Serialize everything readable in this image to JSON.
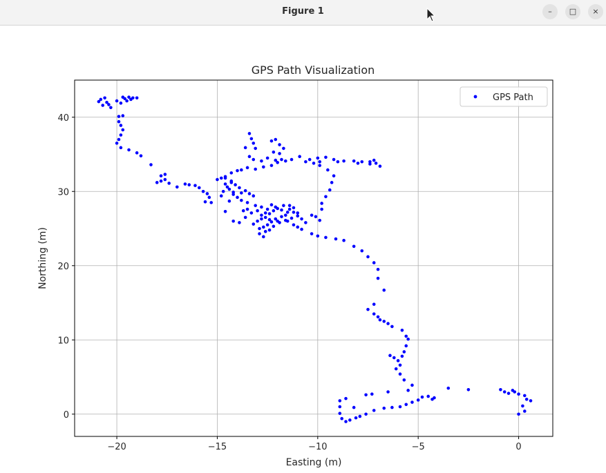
{
  "window": {
    "title": "Figure 1",
    "controls": {
      "minimize": "–",
      "maximize": "□",
      "close": "×"
    }
  },
  "chart_data": {
    "type": "scatter",
    "title": "GPS Path Visualization",
    "xlabel": "Easting (m)",
    "ylabel": "Northing (m)",
    "xlim": [
      -22.1,
      1.7
    ],
    "ylim": [
      -3.0,
      45.0
    ],
    "xticks": [
      -20,
      -15,
      -10,
      -5,
      0
    ],
    "yticks": [
      0,
      10,
      20,
      30,
      40
    ],
    "xtick_labels": [
      "−20",
      "−15",
      "−10",
      "−5",
      "0"
    ],
    "ytick_labels": [
      "0",
      "10",
      "20",
      "30",
      "40"
    ],
    "grid": true,
    "legend": {
      "position": "upper right",
      "entries": [
        "GPS Path"
      ]
    },
    "marker_color": "#0000ff",
    "series": [
      {
        "name": "GPS Path",
        "points": [
          [
            0.0,
            0.0
          ],
          [
            0.3,
            0.4
          ],
          [
            0.2,
            1.1
          ],
          [
            0.4,
            2.0
          ],
          [
            0.6,
            1.8
          ],
          [
            0.3,
            2.5
          ],
          [
            0.0,
            2.7
          ],
          [
            -0.2,
            3.0
          ],
          [
            -0.3,
            3.2
          ],
          [
            -0.5,
            2.8
          ],
          [
            -0.7,
            3.0
          ],
          [
            -0.9,
            3.3
          ],
          [
            -2.5,
            3.3
          ],
          [
            -3.5,
            3.5
          ],
          [
            -4.2,
            2.2
          ],
          [
            -4.3,
            2.0
          ],
          [
            -4.5,
            2.4
          ],
          [
            -4.8,
            2.3
          ],
          [
            -5.0,
            1.9
          ],
          [
            -5.3,
            1.6
          ],
          [
            -5.6,
            1.3
          ],
          [
            -5.9,
            1.0
          ],
          [
            -6.3,
            0.9
          ],
          [
            -6.7,
            0.8
          ],
          [
            -7.2,
            0.5
          ],
          [
            -7.6,
            0.0
          ],
          [
            -7.9,
            -0.3
          ],
          [
            -8.1,
            -0.5
          ],
          [
            -8.4,
            -0.8
          ],
          [
            -8.6,
            -1.0
          ],
          [
            -8.8,
            -0.6
          ],
          [
            -8.9,
            0.1
          ],
          [
            -8.9,
            1.0
          ],
          [
            -8.9,
            1.8
          ],
          [
            -8.6,
            2.1
          ],
          [
            -8.2,
            0.9
          ],
          [
            -7.6,
            2.6
          ],
          [
            -7.3,
            2.7
          ],
          [
            -6.5,
            3.0
          ],
          [
            -5.3,
            3.9
          ],
          [
            -5.5,
            3.2
          ],
          [
            -5.7,
            4.6
          ],
          [
            -5.9,
            5.4
          ],
          [
            -6.1,
            6.1
          ],
          [
            -5.9,
            6.6
          ],
          [
            -6.0,
            7.2
          ],
          [
            -6.2,
            7.6
          ],
          [
            -6.4,
            7.9
          ],
          [
            -5.8,
            7.8
          ],
          [
            -5.7,
            8.4
          ],
          [
            -5.6,
            9.2
          ],
          [
            -5.5,
            10.1
          ],
          [
            -5.6,
            10.5
          ],
          [
            -5.8,
            11.3
          ],
          [
            -6.3,
            11.8
          ],
          [
            -6.5,
            12.2
          ],
          [
            -6.7,
            12.5
          ],
          [
            -6.9,
            12.7
          ],
          [
            -7.0,
            13.1
          ],
          [
            -7.2,
            13.5
          ],
          [
            -7.5,
            14.1
          ],
          [
            -7.2,
            14.8
          ],
          [
            -6.7,
            16.7
          ],
          [
            -7.0,
            18.3
          ],
          [
            -7.0,
            19.5
          ],
          [
            -7.2,
            20.4
          ],
          [
            -7.5,
            21.2
          ],
          [
            -7.8,
            22.0
          ],
          [
            -8.2,
            22.6
          ],
          [
            -8.7,
            23.4
          ],
          [
            -9.1,
            23.6
          ],
          [
            -9.6,
            23.8
          ],
          [
            -10.0,
            24.0
          ],
          [
            -10.3,
            24.3
          ],
          [
            -9.9,
            26.1
          ],
          [
            -10.1,
            26.6
          ],
          [
            -10.3,
            26.8
          ],
          [
            -9.8,
            27.6
          ],
          [
            -9.8,
            28.4
          ],
          [
            -9.6,
            29.3
          ],
          [
            -9.4,
            30.2
          ],
          [
            -9.3,
            31.2
          ],
          [
            -9.2,
            32.1
          ],
          [
            -9.5,
            32.9
          ],
          [
            -9.9,
            33.5
          ],
          [
            -10.2,
            33.8
          ],
          [
            -10.6,
            34.0
          ],
          [
            -10.0,
            34.5
          ],
          [
            -9.6,
            34.6
          ],
          [
            -9.2,
            34.3
          ],
          [
            -8.7,
            34.1
          ],
          [
            -8.2,
            34.1
          ],
          [
            -7.8,
            34.0
          ],
          [
            -7.4,
            34.0
          ],
          [
            -7.1,
            33.8
          ],
          [
            -6.9,
            33.4
          ],
          [
            -7.2,
            34.2
          ],
          [
            -7.4,
            33.7
          ],
          [
            -8.0,
            33.8
          ],
          [
            -9.0,
            34.0
          ],
          [
            -9.9,
            34.0
          ],
          [
            -10.4,
            34.3
          ],
          [
            -10.9,
            34.7
          ],
          [
            -11.3,
            34.3
          ],
          [
            -11.6,
            34.1
          ],
          [
            -11.8,
            34.3
          ],
          [
            -12.1,
            34.2
          ],
          [
            -11.9,
            35.1
          ],
          [
            -12.2,
            35.3
          ],
          [
            -11.7,
            35.8
          ],
          [
            -11.9,
            36.3
          ],
          [
            -12.3,
            36.8
          ],
          [
            -12.1,
            37.0
          ],
          [
            -12.5,
            34.5
          ],
          [
            -12.8,
            34.1
          ],
          [
            -13.2,
            34.3
          ],
          [
            -13.1,
            35.8
          ],
          [
            -13.2,
            36.5
          ],
          [
            -13.3,
            37.1
          ],
          [
            -13.4,
            37.8
          ],
          [
            -13.6,
            35.9
          ],
          [
            -13.4,
            34.7
          ],
          [
            -12.0,
            33.9
          ],
          [
            -12.3,
            33.5
          ],
          [
            -12.7,
            33.3
          ],
          [
            -13.1,
            33.0
          ],
          [
            -13.5,
            33.2
          ],
          [
            -13.8,
            32.9
          ],
          [
            -14.0,
            32.8
          ],
          [
            -14.3,
            32.5
          ],
          [
            -14.6,
            32.0
          ],
          [
            -14.8,
            31.8
          ],
          [
            -15.0,
            31.6
          ],
          [
            -14.6,
            31.8
          ],
          [
            -14.3,
            31.2
          ],
          [
            -14.1,
            30.9
          ],
          [
            -13.9,
            30.5
          ],
          [
            -13.6,
            30.1
          ],
          [
            -13.4,
            29.7
          ],
          [
            -13.2,
            29.4
          ],
          [
            -13.8,
            29.8
          ],
          [
            -14.0,
            29.2
          ],
          [
            -14.2,
            29.6
          ],
          [
            -13.8,
            28.8
          ],
          [
            -13.5,
            28.5
          ],
          [
            -13.1,
            28.1
          ],
          [
            -12.8,
            27.9
          ],
          [
            -12.5,
            27.6
          ],
          [
            -14.6,
            27.3
          ],
          [
            -14.2,
            26.0
          ],
          [
            -13.9,
            25.8
          ],
          [
            -13.6,
            26.5
          ],
          [
            -13.3,
            27.1
          ],
          [
            -13.5,
            27.6
          ],
          [
            -13.7,
            27.4
          ],
          [
            -13.0,
            27.4
          ],
          [
            -12.8,
            26.8
          ],
          [
            -12.6,
            26.5
          ],
          [
            -12.4,
            26.2
          ],
          [
            -12.1,
            26.3
          ],
          [
            -12.3,
            25.9
          ],
          [
            -12.5,
            25.5
          ],
          [
            -12.7,
            25.2
          ],
          [
            -12.9,
            25.0
          ],
          [
            -12.6,
            24.6
          ],
          [
            -12.4,
            24.8
          ],
          [
            -12.2,
            25.3
          ],
          [
            -12.0,
            26.0
          ],
          [
            -11.8,
            26.6
          ],
          [
            -11.6,
            26.8
          ],
          [
            -11.5,
            27.2
          ],
          [
            -11.8,
            27.5
          ],
          [
            -12.0,
            27.7
          ],
          [
            -12.2,
            27.4
          ],
          [
            -12.4,
            27.0
          ],
          [
            -12.6,
            27.1
          ],
          [
            -12.8,
            26.3
          ],
          [
            -13.0,
            26.0
          ],
          [
            -13.2,
            25.6
          ],
          [
            -12.9,
            24.3
          ],
          [
            -12.7,
            23.9
          ],
          [
            -11.7,
            28.1
          ],
          [
            -11.4,
            27.6
          ],
          [
            -11.2,
            27.2
          ],
          [
            -11.0,
            26.7
          ],
          [
            -11.3,
            26.4
          ],
          [
            -11.6,
            26.1
          ],
          [
            -11.9,
            25.8
          ],
          [
            -11.5,
            26.0
          ],
          [
            -11.2,
            25.5
          ],
          [
            -11.0,
            25.2
          ],
          [
            -10.8,
            24.9
          ],
          [
            -10.6,
            25.8
          ],
          [
            -10.8,
            26.3
          ],
          [
            -11.0,
            27.1
          ],
          [
            -11.2,
            27.8
          ],
          [
            -11.4,
            28.1
          ],
          [
            -12.1,
            27.9
          ],
          [
            -12.3,
            28.2
          ],
          [
            -14.4,
            28.7
          ],
          [
            -14.8,
            29.4
          ],
          [
            -14.7,
            30.0
          ],
          [
            -14.5,
            30.6
          ],
          [
            -14.3,
            31.4
          ],
          [
            -14.6,
            31.0
          ],
          [
            -14.4,
            30.3
          ],
          [
            -14.2,
            29.9
          ],
          [
            -15.3,
            28.5
          ],
          [
            -15.6,
            28.6
          ],
          [
            -15.4,
            29.2
          ],
          [
            -15.5,
            29.7
          ],
          [
            -15.7,
            30.0
          ],
          [
            -15.9,
            30.5
          ],
          [
            -16.1,
            30.8
          ],
          [
            -16.4,
            30.9
          ],
          [
            -16.6,
            31.0
          ],
          [
            -17.0,
            30.6
          ],
          [
            -17.4,
            31.1
          ],
          [
            -17.6,
            31.6
          ],
          [
            -17.8,
            32.1
          ],
          [
            -17.6,
            32.3
          ],
          [
            -18.0,
            31.2
          ],
          [
            -17.8,
            31.4
          ],
          [
            -18.3,
            33.6
          ],
          [
            -18.8,
            34.8
          ],
          [
            -19.0,
            35.2
          ],
          [
            -19.4,
            35.6
          ],
          [
            -19.8,
            35.9
          ],
          [
            -20.0,
            36.5
          ],
          [
            -19.9,
            37.0
          ],
          [
            -19.8,
            37.6
          ],
          [
            -19.7,
            38.3
          ],
          [
            -19.8,
            38.9
          ],
          [
            -19.9,
            39.4
          ],
          [
            -19.9,
            40.1
          ],
          [
            -19.7,
            40.2
          ],
          [
            -19.8,
            41.9
          ],
          [
            -20.0,
            42.2
          ],
          [
            -20.3,
            41.3
          ],
          [
            -20.4,
            41.7
          ],
          [
            -20.5,
            42.0
          ],
          [
            -20.6,
            42.6
          ],
          [
            -20.8,
            42.4
          ],
          [
            -20.9,
            42.1
          ],
          [
            -20.7,
            41.6
          ],
          [
            -19.6,
            42.5
          ],
          [
            -19.4,
            42.7
          ],
          [
            -19.2,
            42.6
          ],
          [
            -19.0,
            42.6
          ],
          [
            -19.3,
            42.4
          ],
          [
            -19.5,
            42.2
          ],
          [
            -19.7,
            42.7
          ]
        ]
      }
    ]
  }
}
